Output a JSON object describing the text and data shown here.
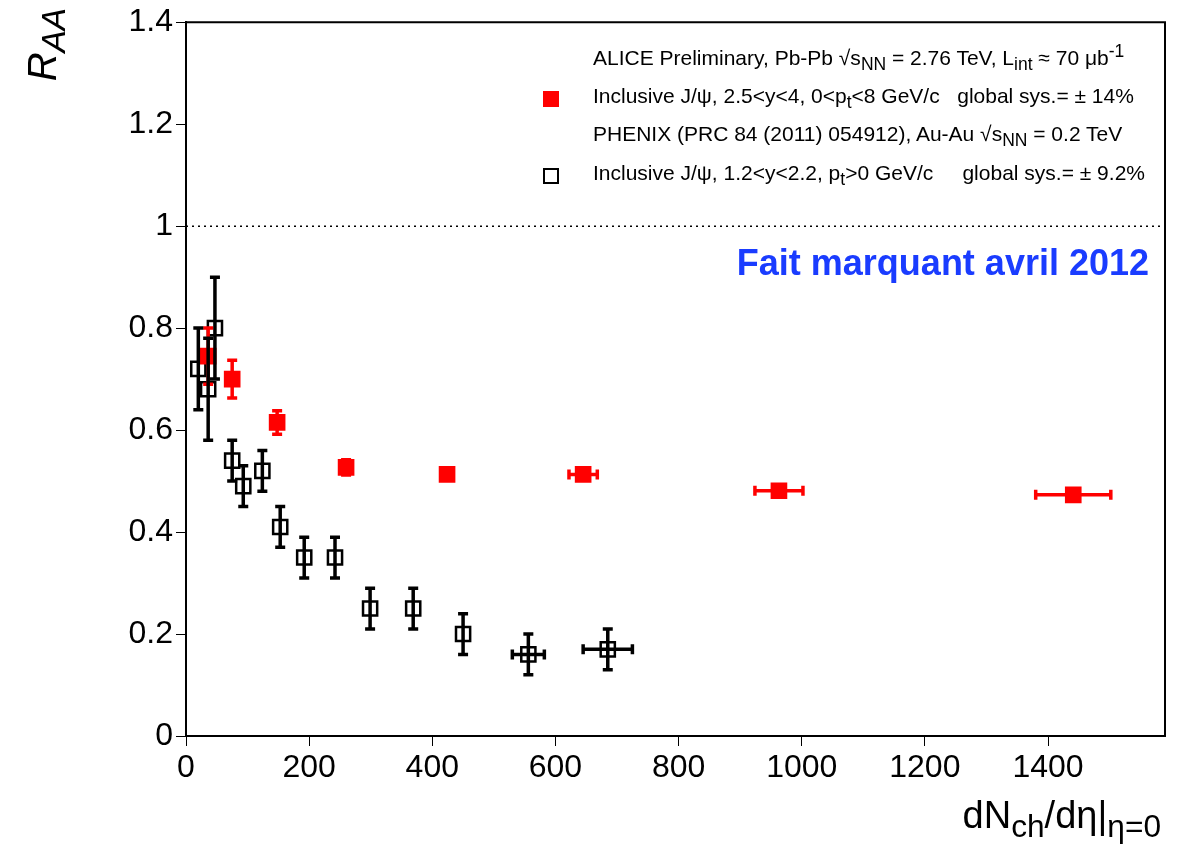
{
  "chart_data": {
    "type": "scatter",
    "xlabel": "dN$_{ch}$/dη|$_{η=0}$",
    "ylabel": "R$_{AA}$",
    "xlim": [
      0,
      1590
    ],
    "xticks": [
      0,
      200,
      400,
      600,
      800,
      1000,
      1200,
      1400
    ],
    "ylim": [
      0,
      1.4
    ],
    "yticks": [
      0,
      0.2,
      0.4,
      0.6,
      0.8,
      1,
      1.2,
      1.4
    ],
    "grid": false,
    "legend": "top right",
    "marker": "square",
    "ref_lines": [
      {
        "axis": "y",
        "value": 1,
        "line_style": "dotted",
        "color": "#000000"
      }
    ],
    "annotations": [
      "ALICE Preliminary, Pb-Pb √s$_{NN}$ = 2.76 TeV, L$_{int}$ ≈ 70 μb$^{-1}$",
      "PHENIX (PRC 84 (2011) 054912), Au-Au √s$_{NN}$ = 0.2 TeV",
      "Fait marquant avril 2012"
    ],
    "series": [
      {
        "name": "Inclusive J/ψ, 2.5<y<4, 0<p$_{t}$<8 GeV/c   global sys.= ± 14%",
        "color": "#ff0000",
        "x": [
          36,
          75,
          148,
          260,
          424,
          645,
          963,
          1441
        ],
        "values": [
          0.745,
          0.7,
          0.615,
          0.527,
          0.513,
          0.513,
          0.481,
          0.473
        ],
        "errors": [
          0.055,
          0.037,
          0.023,
          0.015,
          null,
          null,
          null,
          null
        ],
        "xerrors": [
          null,
          null,
          null,
          null,
          null,
          23,
          39,
          61
        ]
      },
      {
        "name": "Inclusive J/ψ, 1.2<y<2.2, p$_{t}$>0 GeV/c     global sys.= ± 9.2%",
        "color": "#000000",
        "x": [
          20,
          36,
          47,
          75,
          93,
          124,
          153,
          192,
          242,
          299,
          369,
          450,
          556,
          685
        ],
        "values": [
          0.72,
          0.68,
          0.8,
          0.54,
          0.49,
          0.52,
          0.41,
          0.35,
          0.35,
          0.25,
          0.25,
          0.2,
          0.16,
          0.17
        ],
        "errors": [
          0.08,
          0.1,
          0.1,
          0.04,
          0.04,
          0.04,
          0.04,
          0.04,
          0.04,
          0.04,
          0.04,
          0.04,
          0.04,
          0.04
        ],
        "xerrors": [
          null,
          null,
          null,
          null,
          null,
          null,
          null,
          null,
          null,
          null,
          null,
          null,
          26,
          40
        ]
      }
    ]
  }
}
